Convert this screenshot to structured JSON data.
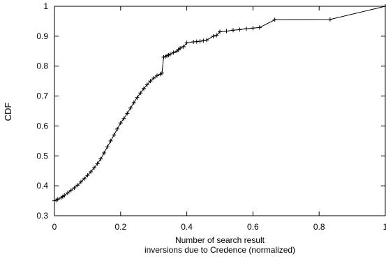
{
  "chart_data": {
    "type": "line",
    "title": "",
    "xlabel": [
      "Number of search result",
      "inversions due to Credence (normalized)"
    ],
    "ylabel": "CDF",
    "xlim": [
      0,
      1
    ],
    "ylim": [
      0.3,
      1
    ],
    "xticks": [
      {
        "value": 0,
        "label": "0"
      },
      {
        "value": 0.2,
        "label": "0.2"
      },
      {
        "value": 0.4,
        "label": "0.4"
      },
      {
        "value": 0.6,
        "label": "0.6"
      },
      {
        "value": 0.8,
        "label": "0.8"
      },
      {
        "value": 1,
        "label": "1"
      }
    ],
    "yticks": [
      {
        "value": 0.3,
        "label": "0.3"
      },
      {
        "value": 0.4,
        "label": "0.4"
      },
      {
        "value": 0.5,
        "label": "0.5"
      },
      {
        "value": 0.6,
        "label": "0.6"
      },
      {
        "value": 0.7,
        "label": "0.7"
      },
      {
        "value": 0.8,
        "label": "0.8"
      },
      {
        "value": 0.9,
        "label": "0.9"
      },
      {
        "value": 1,
        "label": "1"
      }
    ],
    "grid": false,
    "legend": "none",
    "marker": "plus",
    "line_color": "#000000",
    "series": [
      {
        "x": [
          0.0,
          0.005,
          0.01,
          0.02,
          0.025,
          0.03,
          0.04,
          0.05,
          0.06,
          0.07,
          0.08,
          0.09,
          0.1,
          0.11,
          0.12,
          0.13,
          0.14,
          0.15,
          0.16,
          0.17,
          0.18,
          0.19,
          0.2,
          0.21,
          0.22,
          0.23,
          0.24,
          0.25,
          0.26,
          0.27,
          0.28,
          0.29,
          0.3,
          0.31,
          0.32,
          0.325,
          0.33,
          0.335,
          0.34,
          0.345,
          0.35,
          0.36,
          0.37,
          0.375,
          0.38,
          0.39,
          0.4,
          0.42,
          0.43,
          0.44,
          0.45,
          0.46,
          0.48,
          0.49,
          0.5,
          0.52,
          0.54,
          0.56,
          0.58,
          0.6,
          0.62,
          0.666,
          0.833,
          1.0
        ],
        "y": [
          0.35,
          0.352,
          0.355,
          0.36,
          0.364,
          0.368,
          0.376,
          0.385,
          0.393,
          0.402,
          0.413,
          0.424,
          0.435,
          0.447,
          0.46,
          0.474,
          0.49,
          0.51,
          0.53,
          0.55,
          0.57,
          0.59,
          0.61,
          0.625,
          0.642,
          0.66,
          0.678,
          0.695,
          0.71,
          0.725,
          0.738,
          0.75,
          0.76,
          0.768,
          0.773,
          0.777,
          0.83,
          0.832,
          0.835,
          0.837,
          0.84,
          0.845,
          0.85,
          0.855,
          0.86,
          0.865,
          0.878,
          0.881,
          0.882,
          0.883,
          0.885,
          0.887,
          0.9,
          0.903,
          0.915,
          0.917,
          0.92,
          0.922,
          0.925,
          0.927,
          0.929,
          0.955,
          0.956,
          1.0
        ]
      }
    ]
  }
}
